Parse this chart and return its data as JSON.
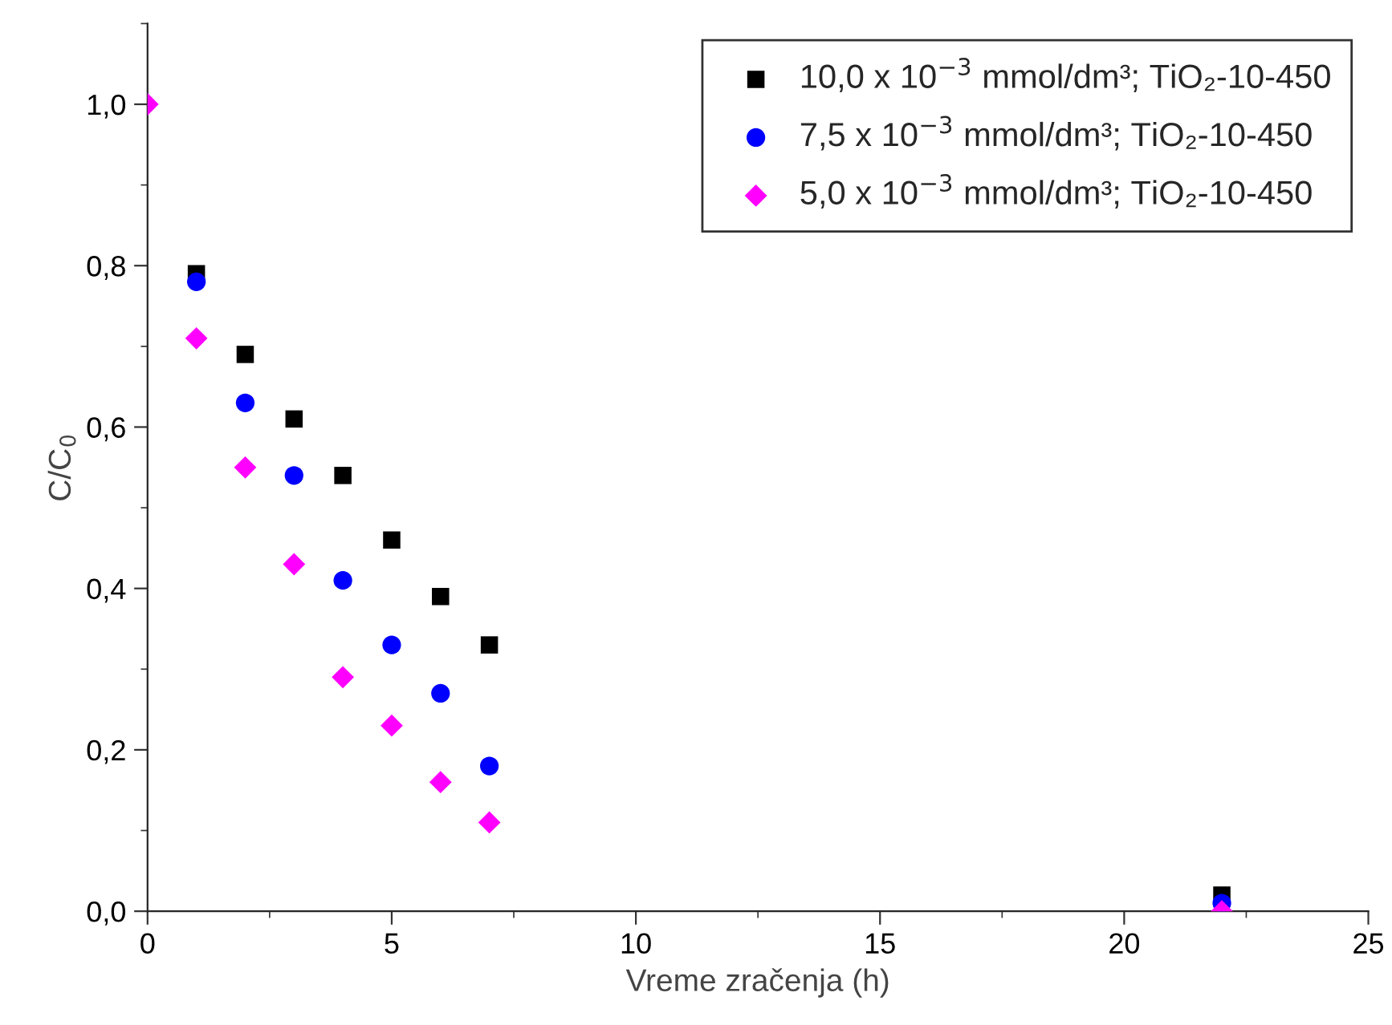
{
  "chart_data": {
    "type": "scatter",
    "xlabel": "Vreme zračenja (h)",
    "ylabel": "C/C$_{0}$",
    "xlim": [
      0,
      25
    ],
    "xticks": [
      0,
      5,
      10,
      15,
      20,
      25
    ],
    "ylim": [
      0,
      1.1
    ],
    "yticks": [
      {
        "value": 0,
        "label": "0,0"
      },
      {
        "value": 0.2,
        "label": "0,2"
      },
      {
        "value": 0.4,
        "label": "0,4"
      },
      {
        "value": 0.6,
        "label": "0,6"
      },
      {
        "value": 0.8,
        "label": "0,8"
      },
      {
        "value": 1.0,
        "label": "1,0"
      }
    ],
    "legend": "top right",
    "grid": false,
    "series": [
      {
        "name": "10,0 x 10$^{−3}$ mmol/dm³; TiO₂-10-450",
        "color": "#000000",
        "marker": "square",
        "x": [
          1,
          2,
          3,
          4,
          5,
          6,
          7,
          22
        ],
        "values": [
          0.79,
          0.69,
          0.61,
          0.54,
          0.46,
          0.39,
          0.33,
          0.02
        ]
      },
      {
        "name": "7,5 x 10$^{−3}$ mmol/dm³; TiO₂-10-450",
        "color": "#0000ff",
        "marker": "circle",
        "x": [
          1,
          2,
          3,
          4,
          5,
          6,
          7,
          22
        ],
        "values": [
          0.78,
          0.63,
          0.54,
          0.41,
          0.33,
          0.27,
          0.18,
          0.01
        ]
      },
      {
        "name": "5,0 x 10$^{−3}$ mmol/dm³; TiO₂-10-450",
        "color": "#ff00ff",
        "marker": "diamond",
        "x": [
          0,
          1,
          2,
          3,
          4,
          5,
          6,
          7,
          22
        ],
        "values": [
          1.0,
          0.71,
          0.55,
          0.43,
          0.29,
          0.23,
          0.16,
          0.11,
          0.0
        ]
      }
    ]
  }
}
